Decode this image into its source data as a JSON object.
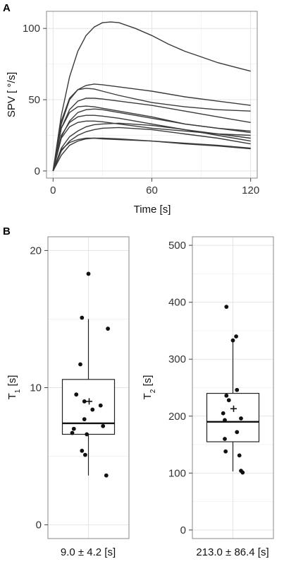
{
  "panel_a": {
    "label": "A",
    "ylabel": "SPV [ °/s]",
    "xlabel": "Time [s]",
    "y_ticks": [
      "0",
      "50",
      "100"
    ],
    "x_ticks": [
      "0",
      "60",
      "120"
    ]
  },
  "panel_b": {
    "label": "B",
    "t1": {
      "ylabel_main": "T",
      "ylabel_sub": "1",
      "ylabel_unit": " [s]",
      "y_ticks": [
        "0",
        "10",
        "20"
      ],
      "summary": "9.0 ± 4.2 [s]"
    },
    "t2": {
      "ylabel_main": "T",
      "ylabel_sub": "2",
      "ylabel_unit": " [s]",
      "y_ticks": [
        "0",
        "100",
        "200",
        "300",
        "400",
        "500"
      ],
      "summary": "213.0 ± 86.4 [s]"
    }
  },
  "colors": {
    "curve": "#3a3a3a",
    "grid": "#e4e4e4",
    "point": "#111111"
  },
  "chart_data": [
    {
      "type": "line",
      "xlabel": "Time [s]",
      "ylabel": "SPV [ °/s]",
      "xlim": [
        -4,
        124
      ],
      "ylim": [
        -5,
        112
      ],
      "x_ticks": [
        0,
        60,
        120
      ],
      "y_ticks": [
        0,
        50,
        100
      ],
      "grid": true,
      "series": [
        {
          "values": [
            [
              0,
              0
            ],
            [
              5,
              39
            ],
            [
              10,
              66
            ],
            [
              15,
              84
            ],
            [
              20,
              95
            ],
            [
              25,
              101
            ],
            [
              30,
              104
            ],
            [
              35,
              104.5
            ],
            [
              40,
              104
            ],
            [
              50,
              100
            ],
            [
              60,
              95
            ],
            [
              70,
              89
            ],
            [
              80,
              84
            ],
            [
              90,
              80
            ],
            [
              100,
              76
            ],
            [
              110,
              73
            ],
            [
              120,
              70
            ]
          ]
        },
        {
          "values": [
            [
              0,
              0
            ],
            [
              5,
              33
            ],
            [
              10,
              50
            ],
            [
              15,
              57
            ],
            [
              20,
              60
            ],
            [
              25,
              61
            ],
            [
              30,
              60.5
            ],
            [
              40,
              59
            ],
            [
              60,
              56
            ],
            [
              80,
              52
            ],
            [
              100,
              49
            ],
            [
              120,
              46
            ]
          ]
        },
        {
          "values": [
            [
              0,
              0
            ],
            [
              5,
              35
            ],
            [
              10,
              51
            ],
            [
              15,
              57
            ],
            [
              20,
              58
            ],
            [
              25,
              57.5
            ],
            [
              30,
              56
            ],
            [
              40,
              53
            ],
            [
              60,
              48
            ],
            [
              80,
              45
            ],
            [
              100,
              43
            ],
            [
              120,
              42
            ]
          ]
        },
        {
          "values": [
            [
              0,
              0
            ],
            [
              5,
              30
            ],
            [
              10,
              43
            ],
            [
              15,
              49
            ],
            [
              20,
              51
            ],
            [
              25,
              51
            ],
            [
              30,
              50.5
            ],
            [
              40,
              49
            ],
            [
              60,
              46
            ],
            [
              80,
              42
            ],
            [
              100,
              38
            ],
            [
              120,
              34
            ]
          ]
        },
        {
          "values": [
            [
              0,
              0
            ],
            [
              5,
              30
            ],
            [
              10,
              41
            ],
            [
              15,
              45
            ],
            [
              20,
              45.5
            ],
            [
              25,
              45
            ],
            [
              30,
              44
            ],
            [
              40,
              42
            ],
            [
              60,
              38
            ],
            [
              80,
              33
            ],
            [
              100,
              30
            ],
            [
              120,
              27
            ]
          ]
        },
        {
          "values": [
            [
              0,
              0
            ],
            [
              5,
              24
            ],
            [
              10,
              35
            ],
            [
              15,
              41
            ],
            [
              20,
              43
            ],
            [
              25,
              43.5
            ],
            [
              30,
              43
            ],
            [
              40,
              41
            ],
            [
              60,
              37
            ],
            [
              80,
              33
            ],
            [
              100,
              30
            ],
            [
              120,
              28
            ]
          ]
        },
        {
          "values": [
            [
              0,
              0
            ],
            [
              5,
              25
            ],
            [
              10,
              34
            ],
            [
              15,
              38
            ],
            [
              20,
              39
            ],
            [
              25,
              39
            ],
            [
              30,
              38.5
            ],
            [
              40,
              37
            ],
            [
              60,
              33
            ],
            [
              80,
              29
            ],
            [
              100,
              26
            ],
            [
              120,
              23
            ]
          ]
        },
        {
          "values": [
            [
              0,
              0
            ],
            [
              5,
              23
            ],
            [
              10,
              31
            ],
            [
              15,
              34
            ],
            [
              20,
              35
            ],
            [
              25,
              35
            ],
            [
              30,
              34.5
            ],
            [
              40,
              33
            ],
            [
              60,
              30
            ],
            [
              80,
              28
            ],
            [
              100,
              26
            ],
            [
              120,
              25
            ]
          ]
        },
        {
          "values": [
            [
              0,
              0
            ],
            [
              5,
              16
            ],
            [
              10,
              24
            ],
            [
              15,
              28
            ],
            [
              20,
              31
            ],
            [
              25,
              32.5
            ],
            [
              30,
              33
            ],
            [
              40,
              33.5
            ],
            [
              60,
              32
            ],
            [
              80,
              29
            ],
            [
              100,
              25
            ],
            [
              120,
              21
            ]
          ]
        },
        {
          "values": [
            [
              0,
              0
            ],
            [
              5,
              14
            ],
            [
              10,
              21
            ],
            [
              15,
              25
            ],
            [
              20,
              27.5
            ],
            [
              25,
              29
            ],
            [
              30,
              30
            ],
            [
              40,
              30.5
            ],
            [
              60,
              29
            ],
            [
              80,
              26
            ],
            [
              100,
              23
            ],
            [
              120,
              19
            ]
          ]
        },
        {
          "values": [
            [
              0,
              0
            ],
            [
              5,
              15
            ],
            [
              10,
              20
            ],
            [
              15,
              22
            ],
            [
              20,
              23
            ],
            [
              25,
              23
            ],
            [
              30,
              22.5
            ],
            [
              40,
              22
            ],
            [
              60,
              21
            ],
            [
              80,
              19.5
            ],
            [
              100,
              18
            ],
            [
              120,
              16
            ]
          ]
        },
        {
          "values": [
            [
              0,
              0
            ],
            [
              5,
              11
            ],
            [
              10,
              18
            ],
            [
              15,
              21
            ],
            [
              20,
              22.5
            ],
            [
              25,
              23
            ],
            [
              30,
              23
            ],
            [
              40,
              22.5
            ],
            [
              60,
              21
            ],
            [
              80,
              19
            ],
            [
              100,
              17.5
            ],
            [
              120,
              15.5
            ]
          ]
        }
      ]
    },
    {
      "type": "box",
      "ylabel": "T1 [s]",
      "ylim": [
        -1,
        21
      ],
      "y_ticks": [
        0,
        10,
        20
      ],
      "summary": "9.0 ± 4.2 [s]",
      "box": {
        "q1": 6.6,
        "median": 7.4,
        "q3": 10.6,
        "whisker_low": 3.6,
        "whisker_high": 15.0,
        "mean": 9.0
      },
      "points": [
        [
          0.0,
          18.3
        ],
        [
          -0.08,
          15.1
        ],
        [
          0.24,
          14.3
        ],
        [
          -0.1,
          11.7
        ],
        [
          -0.15,
          9.5
        ],
        [
          -0.05,
          9.0
        ],
        [
          0.15,
          8.7
        ],
        [
          0.05,
          8.4
        ],
        [
          -0.05,
          7.7
        ],
        [
          -0.18,
          7.0
        ],
        [
          0.18,
          7.2
        ],
        [
          -0.2,
          6.7
        ],
        [
          -0.02,
          6.6
        ],
        [
          -0.08,
          5.4
        ],
        [
          -0.04,
          5.1
        ],
        [
          0.22,
          3.6
        ]
      ]
    },
    {
      "type": "box",
      "ylabel": "T2 [s]",
      "ylim": [
        -15,
        515
      ],
      "y_ticks": [
        0,
        100,
        200,
        300,
        400,
        500
      ],
      "summary": "213.0 ± 86.4 [s]",
      "box": {
        "q1": 155,
        "median": 190,
        "q3": 240,
        "whisker_low": 103,
        "whisker_high": 330,
        "mean": 213
      },
      "points": [
        [
          -0.08,
          392
        ],
        [
          0.04,
          340
        ],
        [
          0.0,
          333
        ],
        [
          0.05,
          246
        ],
        [
          -0.08,
          236
        ],
        [
          -0.05,
          228
        ],
        [
          -0.12,
          205
        ],
        [
          0.1,
          196
        ],
        [
          -0.1,
          193
        ],
        [
          0.05,
          172
        ],
        [
          -0.1,
          160
        ],
        [
          -0.09,
          138
        ],
        [
          0.08,
          131
        ],
        [
          0.1,
          104
        ],
        [
          0.12,
          101
        ]
      ]
    }
  ]
}
